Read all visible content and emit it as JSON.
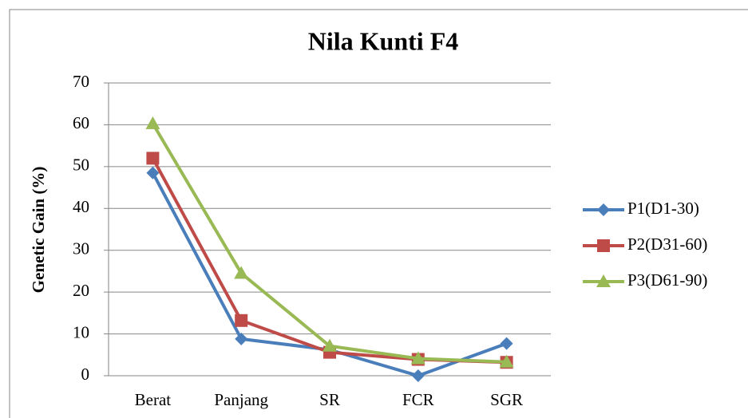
{
  "chart_data": {
    "type": "line",
    "title": "Nila Kunti F4",
    "y_label": "Genetic Gain (%)",
    "categories": [
      "Berat",
      "Panjang",
      "SR",
      "FCR",
      "SGR"
    ],
    "series": [
      {
        "name": "P1(D1-30)",
        "color": "#4a7ebb",
        "marker": "diamond",
        "values": [
          48.5,
          8.8,
          6.2,
          0,
          7.7
        ]
      },
      {
        "name": "P2(D31-60)",
        "color": "#be4b48",
        "marker": "square",
        "values": [
          52,
          13.2,
          5.6,
          3.9,
          3.2
        ]
      },
      {
        "name": "P3(D61-90)",
        "color": "#98b954",
        "marker": "triangle",
        "values": [
          60.3,
          24.5,
          7.1,
          4.1,
          3.3
        ]
      }
    ],
    "ylim": [
      0,
      70
    ],
    "yticks": [
      0,
      10,
      20,
      30,
      40,
      50,
      60,
      70
    ],
    "grid": true,
    "legend": "right"
  }
}
